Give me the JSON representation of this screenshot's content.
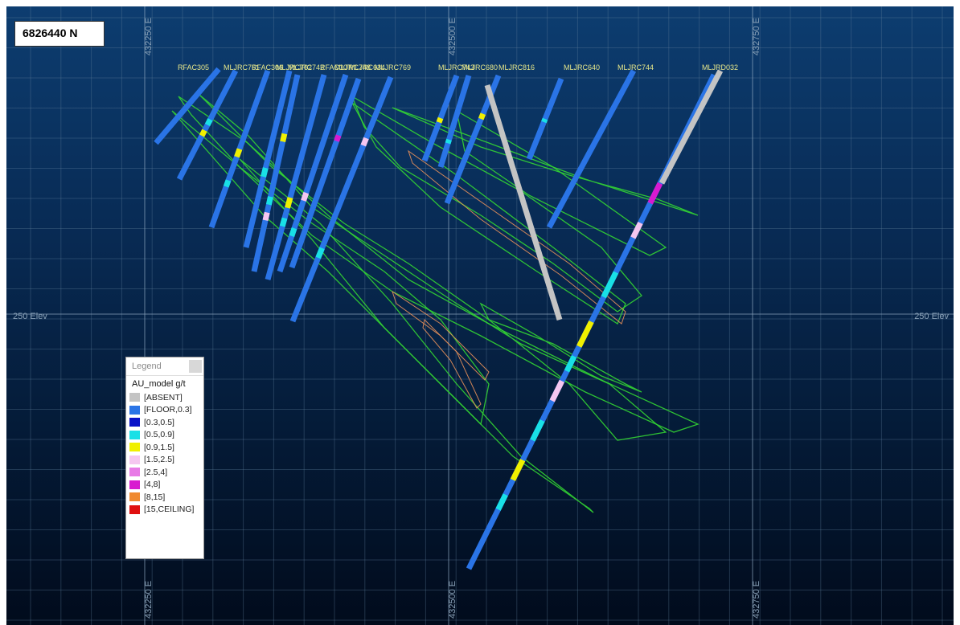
{
  "section_label": "6826440 N",
  "grid": {
    "easting_labels": [
      "432250 E",
      "432500 E",
      "432750 E"
    ],
    "elevation_labels": [
      "250 Elev",
      "250 Elev"
    ]
  },
  "drillholes": [
    "RFAC305",
    "MLJRC761",
    "RFAC306",
    "MLJRC762",
    "MLJRC742",
    "RFAC307",
    "MLJRC748",
    "MLJRC634",
    "MLJRC769",
    "MLJRC743",
    "MLJRC680",
    "MLJRC816",
    "MLJRC640",
    "MLJRC744",
    "MLJRD032"
  ],
  "legend": {
    "title": "Legend",
    "attribute": "AU_model g/t",
    "items": [
      {
        "label": "[ABSENT]",
        "color": "#c4c4c4"
      },
      {
        "label": "[FLOOR,0.3]",
        "color": "#2a74e6"
      },
      {
        "label": "[0.3,0.5]",
        "color": "#0a12c8"
      },
      {
        "label": "[0.5,0.9]",
        "color": "#19e0e6"
      },
      {
        "label": "[0.9,1.5]",
        "color": "#f0f000"
      },
      {
        "label": "[1.5,2.5]",
        "color": "#f5c6f0"
      },
      {
        "label": "[2.5,4]",
        "color": "#e87ae6"
      },
      {
        "label": "[4,8]",
        "color": "#d81ad0"
      },
      {
        "label": "[8,15]",
        "color": "#f08a30"
      },
      {
        "label": "[15,CEILING]",
        "color": "#e01010"
      }
    ]
  },
  "colors": {
    "ore_shell": "#33d433",
    "high_grade_shell": "#e8905a",
    "collar_label": "#e6e68a",
    "grid_line": "#5f7f9c",
    "grid_label": "#8aa2b8"
  }
}
